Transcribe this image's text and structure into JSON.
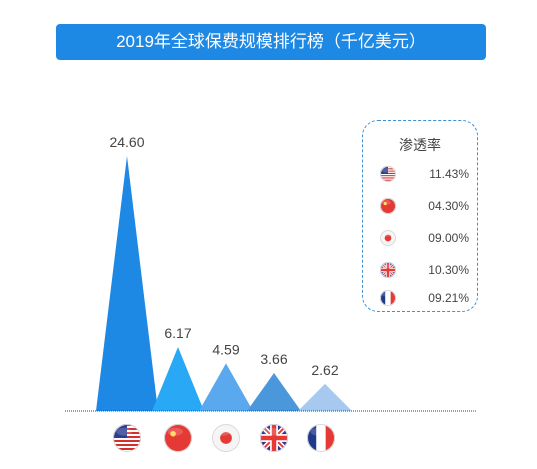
{
  "title": "2019年全球保费规模排行榜（千亿美元）",
  "chart_data": {
    "type": "bar",
    "categories": [
      "美国",
      "中国",
      "日本",
      "英国",
      "法国"
    ],
    "values": [
      24.6,
      6.17,
      4.59,
      3.66,
      2.62
    ],
    "value_labels": [
      "24.60",
      "6.17",
      "4.59",
      "3.66",
      "2.62"
    ],
    "title": "2019年全球保费规模排行榜（千亿美元）",
    "xlabel": "",
    "ylabel": "",
    "ylim": [
      0,
      24.6
    ],
    "grid": false,
    "legend_position": "right",
    "bar_colors": [
      "#1e88e5",
      "#29a8f5",
      "#5aa9ee",
      "#4a97dc",
      "#a7c9ef"
    ],
    "flag_icons": [
      "us-flag-icon",
      "china-flag-icon",
      "japan-flag-icon",
      "uk-flag-icon",
      "france-flag-icon"
    ]
  },
  "legend": {
    "title": "渗透率",
    "items": [
      {
        "icon": "us-flag-icon",
        "value": "11.43%"
      },
      {
        "icon": "china-flag-icon",
        "value": "04.30%"
      },
      {
        "icon": "japan-flag-icon",
        "value": "09.00%"
      },
      {
        "icon": "uk-flag-icon",
        "value": "10.30%"
      },
      {
        "icon": "france-flag-icon",
        "value": "09.21%"
      }
    ]
  },
  "colors": {
    "title_bar": "#1e88e5",
    "baseline": "#1f4e79",
    "legend_border": "#3d8fd6"
  }
}
